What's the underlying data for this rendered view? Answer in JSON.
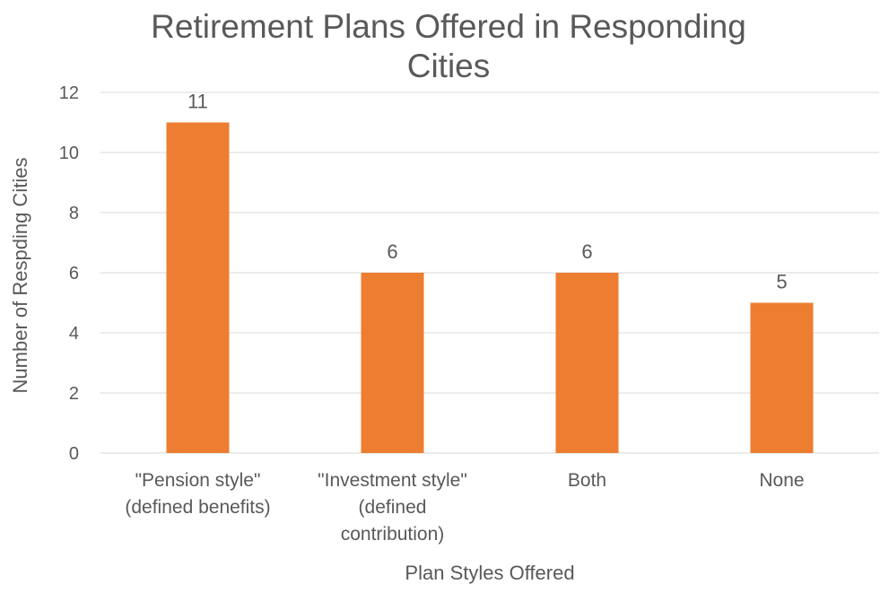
{
  "chart_data": {
    "type": "bar",
    "title": "Retirement Plans Offered in Responding Cities",
    "title_lines": [
      "Retirement Plans Offered in Responding",
      "Cities"
    ],
    "xlabel": "Plan Styles Offered",
    "ylabel": "Number of Respding Cities",
    "categories": [
      "\"Pension style\" (defined benefits)",
      "\"Investment style\" (defined contribution)",
      "Both",
      "None"
    ],
    "category_lines": [
      [
        "\"Pension style\"",
        "(defined benefits)"
      ],
      [
        "\"Investment style\"",
        "(defined",
        "contribution)"
      ],
      [
        "Both"
      ],
      [
        "None"
      ]
    ],
    "values": [
      11,
      6,
      6,
      5
    ],
    "data_labels": [
      "11",
      "6",
      "6",
      "5"
    ],
    "ylim": [
      0,
      12
    ],
    "yticks": [
      0,
      2,
      4,
      6,
      8,
      10,
      12
    ],
    "grid": true,
    "legend": "none",
    "colors": {
      "bar": "#ED7D31",
      "grid": "#D9D9D9",
      "text": "#595959"
    }
  }
}
